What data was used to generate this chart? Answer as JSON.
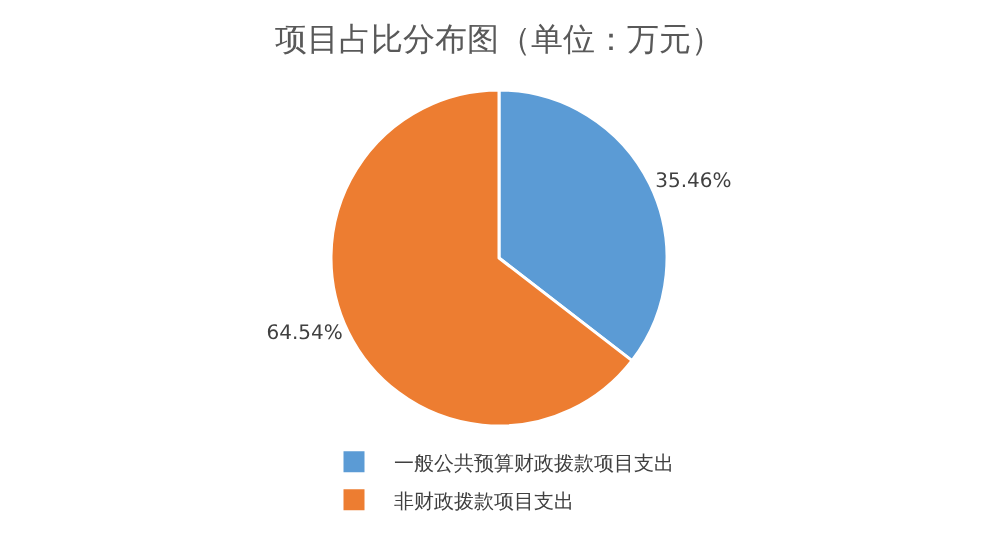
{
  "chart_data": {
    "type": "pie",
    "title": "项目占比分布图（单位：万元）",
    "categories": [
      "一般公共预算财政拨款项目支出",
      "非财政拨款项目支出"
    ],
    "values": [
      35.46,
      64.54
    ],
    "colors": [
      "#5b9bd5",
      "#ed7d31"
    ],
    "value_labels": [
      "35.46%",
      "64.54%"
    ],
    "legend": "bottom"
  }
}
